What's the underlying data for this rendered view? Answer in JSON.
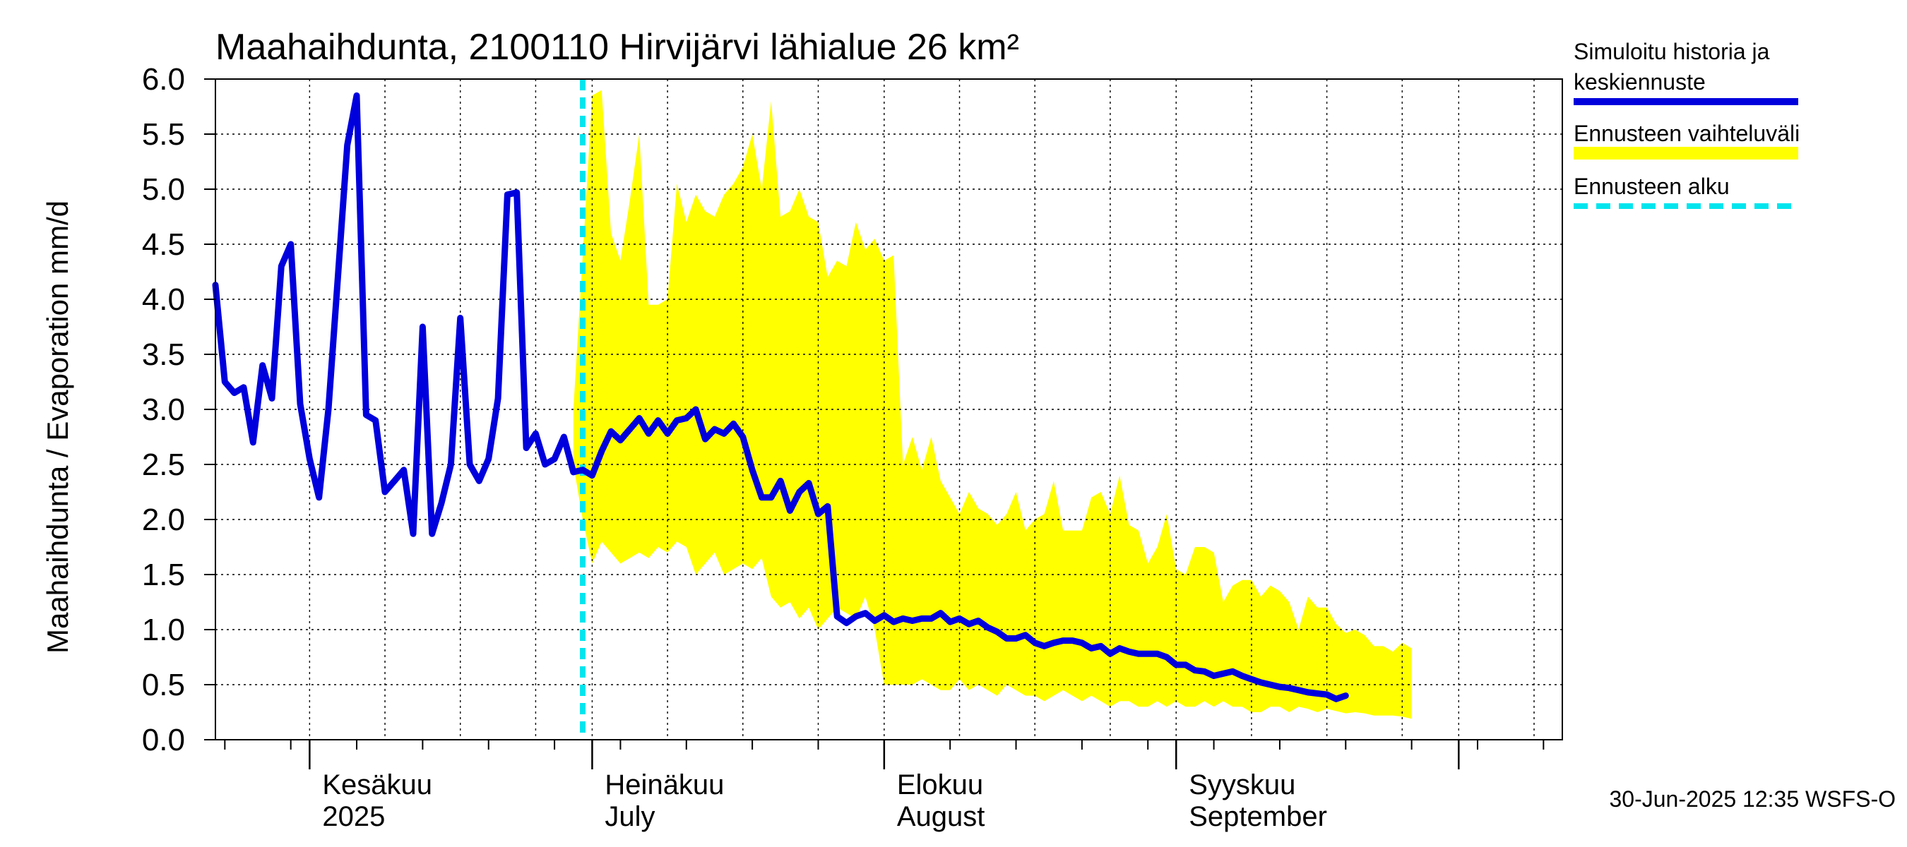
{
  "chart_data": {
    "type": "line",
    "title": "Maahaihdunta, 2100110 Hirvijärvi lähialue 26 km²",
    "ylabel": "Maahaihdunta / Evaporation   mm/d",
    "ylim": [
      0,
      6
    ],
    "yticks": [
      "0.0",
      "0.5",
      "1.0",
      "1.5",
      "2.0",
      "2.5",
      "3.0",
      "3.5",
      "4.0",
      "4.5",
      "5.0",
      "5.5",
      "6.0"
    ],
    "xlim": [
      "2025-05-22",
      "2025-10-12"
    ],
    "grid": true,
    "month_labels": [
      {
        "date": "2025-06-01",
        "fi": "Kesäkuu",
        "en": "2025"
      },
      {
        "date": "2025-07-01",
        "fi": "Heinäkuu",
        "en": "July"
      },
      {
        "date": "2025-08-01",
        "fi": "Elokuu",
        "en": "August"
      },
      {
        "date": "2025-09-01",
        "fi": "Syyskuu",
        "en": "September"
      }
    ],
    "forecast_start": "2025-06-30",
    "legend": {
      "placement": "right",
      "entries": [
        {
          "label": "Simuloitu historia ja",
          "label2": "keskiennuste",
          "color": "#0000dd",
          "style": "line"
        },
        {
          "label": "Ennusteen vaihteluväli",
          "color": "#ffff00",
          "style": "band"
        },
        {
          "label": "Ennusteen alku",
          "color": "#00e5ee",
          "style": "dashed"
        }
      ]
    },
    "footer": "30-Jun-2025 12:35 WSFS-O",
    "series": [
      {
        "name": "Simuloitu historia ja keskiennuste",
        "color": "#0000dd",
        "start": "2025-05-22",
        "values": [
          4.13,
          3.25,
          3.15,
          3.2,
          2.7,
          3.4,
          3.1,
          4.3,
          4.5,
          3.05,
          2.55,
          2.2,
          3.0,
          4.2,
          5.4,
          5.85,
          2.95,
          2.9,
          2.25,
          2.35,
          2.45,
          1.87,
          3.75,
          1.87,
          2.15,
          2.5,
          3.83,
          2.5,
          2.35,
          2.55,
          3.1,
          4.95,
          4.97,
          2.65,
          2.78,
          2.5,
          2.55,
          2.75,
          2.43,
          2.45,
          2.4,
          2.62,
          2.8,
          2.72,
          2.82,
          2.92,
          2.78,
          2.9,
          2.78,
          2.9,
          2.92,
          3.0,
          2.73,
          2.82,
          2.78,
          2.87,
          2.75,
          2.45,
          2.2,
          2.2,
          2.35,
          2.08,
          2.25,
          2.33,
          2.05,
          2.12,
          1.12,
          1.06,
          1.12,
          1.15,
          1.08,
          1.13,
          1.07,
          1.1,
          1.08,
          1.1,
          1.1,
          1.15,
          1.07,
          1.1,
          1.05,
          1.08,
          1.02,
          0.98,
          0.92,
          0.92,
          0.95,
          0.88,
          0.85,
          0.88,
          0.9,
          0.9,
          0.88,
          0.83,
          0.85,
          0.78,
          0.83,
          0.8,
          0.78,
          0.78,
          0.78,
          0.75,
          0.68,
          0.68,
          0.63,
          0.62,
          0.58,
          0.6,
          0.62,
          0.58,
          0.55,
          0.52,
          0.5,
          0.48,
          0.47,
          0.45,
          0.43,
          0.42,
          0.41,
          0.37,
          0.4
        ]
      }
    ],
    "band": {
      "name": "Ennusteen vaihteluväli",
      "color": "#ffff00",
      "start": "2025-06-29",
      "upper": [
        3.0,
        4.4,
        5.85,
        5.9,
        4.6,
        4.35,
        4.9,
        5.5,
        3.95,
        3.95,
        4.0,
        5.05,
        4.7,
        4.95,
        4.8,
        4.75,
        4.95,
        5.05,
        5.2,
        5.5,
        5.0,
        5.8,
        4.75,
        4.8,
        5.0,
        4.75,
        4.7,
        4.2,
        4.35,
        4.3,
        4.7,
        4.45,
        4.55,
        4.35,
        4.4,
        2.5,
        2.75,
        2.45,
        2.75,
        2.35,
        2.2,
        2.05,
        2.25,
        2.1,
        2.05,
        1.95,
        2.05,
        2.25,
        1.9,
        2.0,
        2.05,
        2.35,
        1.9,
        1.9,
        1.9,
        2.2,
        2.25,
        2.05,
        2.4,
        1.95,
        1.9,
        1.6,
        1.75,
        2.05,
        1.55,
        1.5,
        1.75,
        1.75,
        1.7,
        1.25,
        1.4,
        1.45,
        1.45,
        1.3,
        1.4,
        1.35,
        1.25,
        1.0,
        1.3,
        1.2,
        1.2,
        1.05,
        0.97,
        1.0,
        0.95,
        0.85,
        0.85,
        0.8,
        0.88,
        0.83
      ],
      "lower": [
        2.5,
        2.0,
        1.6,
        1.8,
        1.7,
        1.6,
        1.65,
        1.7,
        1.65,
        1.75,
        1.7,
        1.8,
        1.75,
        1.5,
        1.6,
        1.7,
        1.5,
        1.55,
        1.6,
        1.55,
        1.65,
        1.3,
        1.2,
        1.25,
        1.1,
        1.2,
        1.0,
        1.1,
        1.2,
        1.15,
        1.1,
        1.3,
        1.0,
        0.5,
        0.5,
        0.5,
        0.5,
        0.55,
        0.5,
        0.45,
        0.45,
        0.55,
        0.45,
        0.5,
        0.45,
        0.4,
        0.5,
        0.45,
        0.4,
        0.4,
        0.35,
        0.4,
        0.45,
        0.4,
        0.35,
        0.4,
        0.35,
        0.3,
        0.35,
        0.35,
        0.3,
        0.3,
        0.35,
        0.3,
        0.35,
        0.3,
        0.3,
        0.35,
        0.3,
        0.35,
        0.3,
        0.3,
        0.25,
        0.25,
        0.3,
        0.3,
        0.25,
        0.3,
        0.28,
        0.25,
        0.28,
        0.26,
        0.24,
        0.25,
        0.24,
        0.22,
        0.22,
        0.22,
        0.21,
        0.19
      ]
    }
  }
}
